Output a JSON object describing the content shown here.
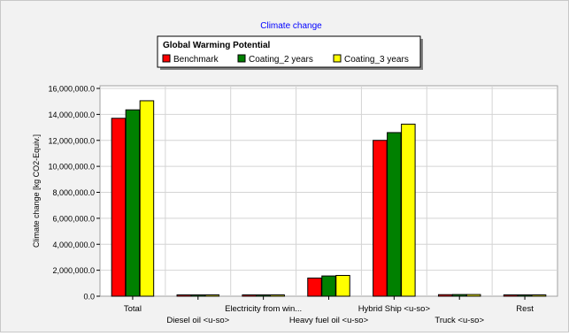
{
  "chart_data": {
    "type": "bar",
    "title": "Climate change",
    "legend_title": "Global Warming Potential",
    "legend_position": "top-center",
    "ylabel": "Climate change [kg CO2-Equiv.]",
    "xlabel": "",
    "ylim": [
      0,
      16000000
    ],
    "yticks": [
      0,
      2000000,
      4000000,
      6000000,
      8000000,
      10000000,
      12000000,
      14000000,
      16000000
    ],
    "ytick_labels": [
      "0.0",
      "2,000,000.0",
      "4,000,000.0",
      "6,000,000.0",
      "8,000,000.0",
      "10,000,000.0",
      "12,000,000.0",
      "14,000,000.0",
      "16,000,000.0"
    ],
    "grid": true,
    "categories": [
      "Total",
      "Diesel oil <u-so>",
      "Electricity from win...",
      "Heavy fuel oil <u-so>",
      "Hybrid Ship <u-so>",
      "Truck <u-so>",
      "Rest"
    ],
    "series": [
      {
        "name": "Benchmark",
        "color": "#ff0000",
        "values": [
          13700000,
          30000,
          70000,
          1400000,
          12000000,
          120000,
          20000
        ]
      },
      {
        "name": "Coating_2 years",
        "color": "#008000",
        "values": [
          14350000,
          30000,
          70000,
          1560000,
          12600000,
          130000,
          20000
        ]
      },
      {
        "name": "Coating_3 years",
        "color": "#ffff00",
        "values": [
          15050000,
          30000,
          70000,
          1600000,
          13250000,
          130000,
          20000
        ]
      }
    ]
  }
}
